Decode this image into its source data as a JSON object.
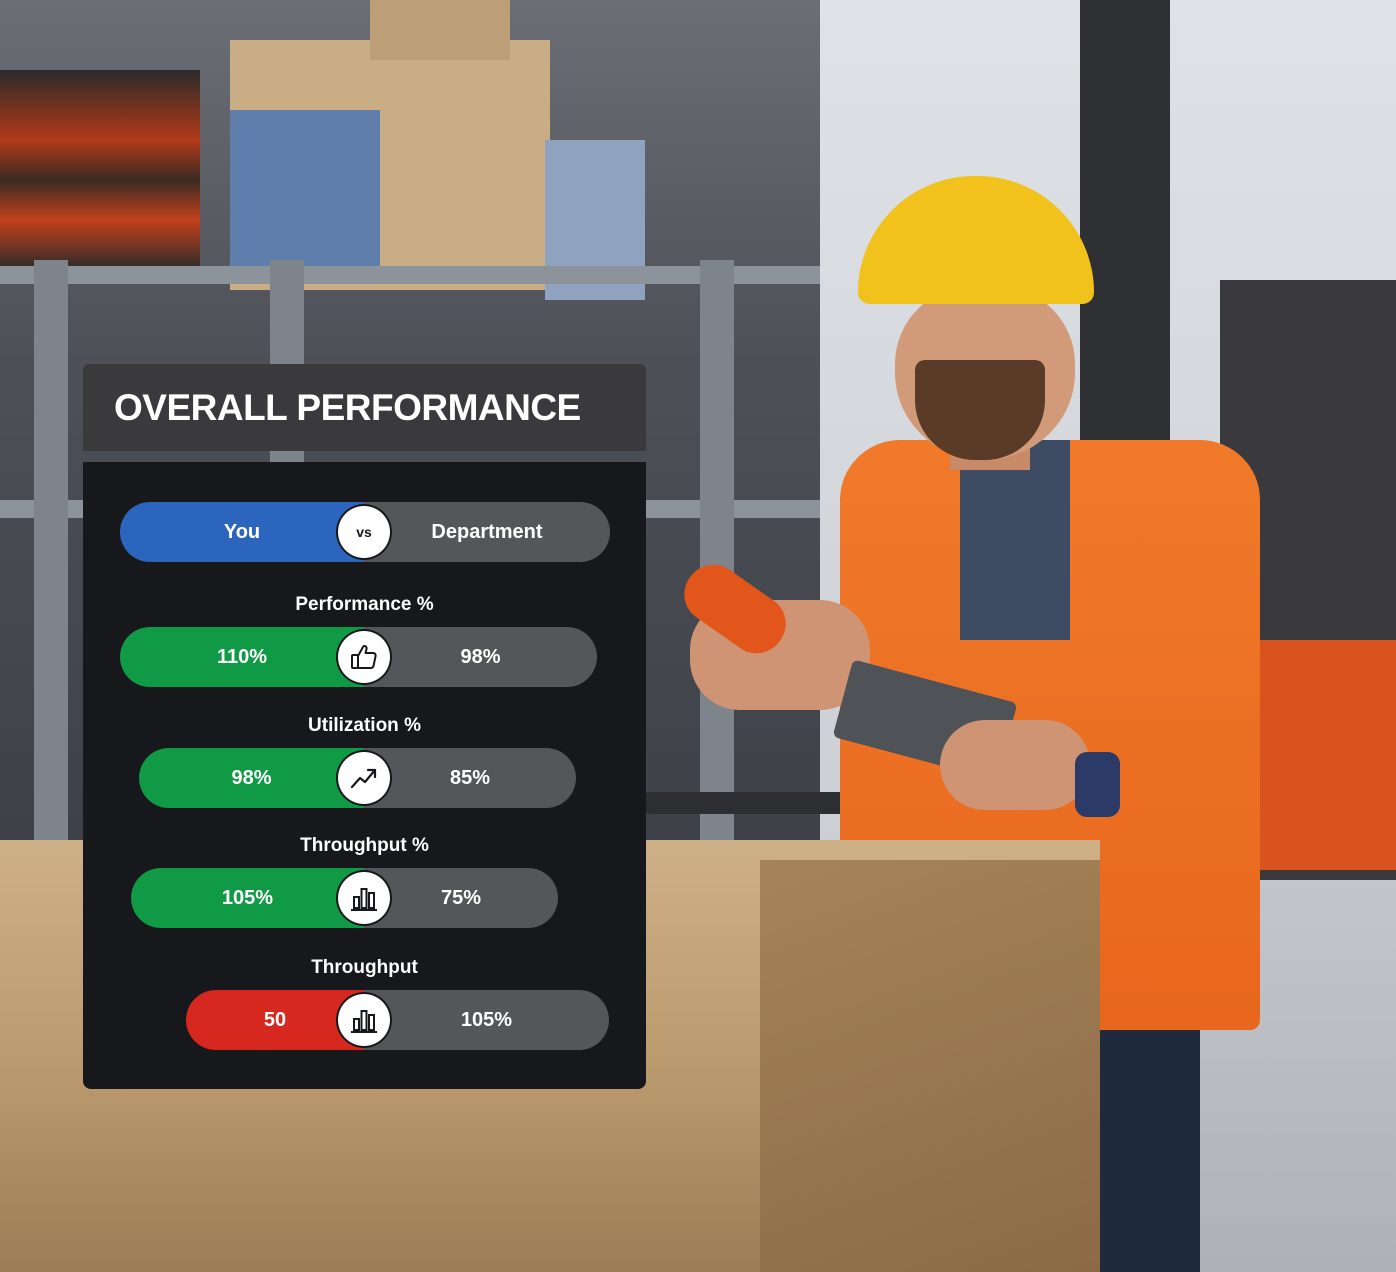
{
  "panel": {
    "title": "OVERALL PERFORMANCE",
    "header_row": {
      "left": "You",
      "vs": "vs",
      "right": "Department"
    },
    "metrics": [
      {
        "label": "Performance %",
        "you": "110%",
        "department": "98%",
        "icon": "thumbs-up-icon",
        "you_color": "#119a45"
      },
      {
        "label": "Utilization %",
        "you": "98%",
        "department": "85%",
        "icon": "trend-up-icon",
        "you_color": "#119a45"
      },
      {
        "label": "Throughput %",
        "you": "105%",
        "department": "75%",
        "icon": "bar-chart-icon",
        "you_color": "#119a45"
      },
      {
        "label": "Throughput",
        "you": "50",
        "department": "105%",
        "icon": "bar-chart-icon",
        "you_color": "#d6281e"
      }
    ]
  },
  "colors": {
    "you_blue": "#2b65be",
    "good_green": "#119a45",
    "bad_red": "#d6281e",
    "department_gray": "#555659",
    "panel_bg": "#17181c",
    "title_bg": "#3a3a3c"
  }
}
